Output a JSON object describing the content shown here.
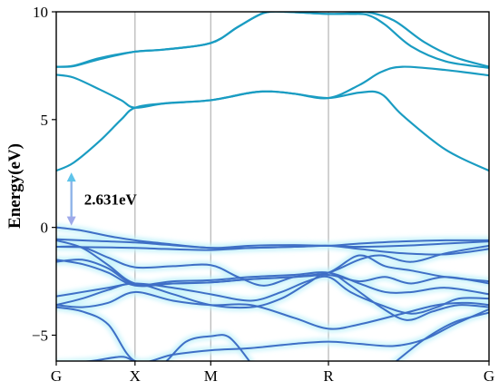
{
  "chart_data": {
    "type": "line",
    "title": "",
    "ylabel": "Energy(eV)",
    "xlabel": "",
    "ylim": [
      -6.2,
      10
    ],
    "x_range": [
      0,
      1
    ],
    "grid": false,
    "k_points": [
      {
        "label": "G",
        "x": 0.0
      },
      {
        "label": "X",
        "x": 0.182
      },
      {
        "label": "M",
        "x": 0.357
      },
      {
        "label": "R",
        "x": 0.629
      },
      {
        "label": "G",
        "x": 1.0
      }
    ],
    "y_ticks": [
      {
        "label": "10",
        "value": 10
      },
      {
        "label": "5",
        "value": 5
      },
      {
        "label": "0",
        "value": 0
      },
      {
        "label": "−5",
        "value": -5
      }
    ],
    "annotation": {
      "text": "2.631eV",
      "x": 0.035,
      "y_low": 0,
      "y_high": 2.631
    },
    "conduction_color": "#1a9cc2",
    "valence_color": "#3f6fc6",
    "glow_color": "#c8f3fb",
    "conduction_bands": [
      {
        "x": [
          0,
          0.04,
          0.1,
          0.15,
          0.182,
          0.25,
          0.357,
          0.45,
          0.5,
          0.55,
          0.629,
          0.7,
          0.75,
          0.8,
          0.9,
          1.0
        ],
        "y": [
          2.63,
          3.0,
          4.0,
          5.0,
          5.55,
          5.75,
          5.9,
          6.25,
          6.3,
          6.2,
          6.0,
          6.25,
          6.2,
          5.2,
          3.6,
          2.63
        ]
      },
      {
        "x": [
          0,
          0.04,
          0.1,
          0.15,
          0.182,
          0.25,
          0.357,
          0.45,
          0.5,
          0.55,
          0.629,
          0.7,
          0.75,
          0.8,
          0.9,
          1.0
        ],
        "y": [
          7.08,
          6.95,
          6.4,
          5.9,
          5.55,
          5.75,
          5.9,
          6.25,
          6.3,
          6.2,
          6.0,
          6.6,
          7.2,
          7.45,
          7.3,
          7.05
        ]
      },
      {
        "x": [
          0,
          0.04,
          0.1,
          0.182,
          0.25,
          0.357,
          0.42,
          0.48,
          0.53,
          0.56,
          0.629,
          0.68,
          0.72,
          0.78,
          0.85,
          0.92,
          1.0
        ],
        "y": [
          7.45,
          7.48,
          7.8,
          8.15,
          8.25,
          8.55,
          9.3,
          9.95,
          10.0,
          9.97,
          9.9,
          9.93,
          9.98,
          9.6,
          8.6,
          7.9,
          7.45
        ]
      },
      {
        "x": [
          0,
          0.04,
          0.1,
          0.182,
          0.25,
          0.357,
          0.42,
          0.48,
          0.53,
          0.56,
          0.629,
          0.68,
          0.72,
          0.76,
          0.82,
          0.9,
          1.0
        ],
        "y": [
          7.45,
          7.5,
          7.85,
          8.15,
          8.25,
          8.55,
          9.3,
          9.95,
          10.0,
          9.97,
          9.9,
          9.9,
          9.85,
          9.4,
          8.4,
          7.7,
          7.4
        ]
      }
    ],
    "valence_bands": [
      {
        "x": [
          0,
          0.06,
          0.12,
          0.182,
          0.25,
          0.357,
          0.45,
          0.55,
          0.629,
          0.7,
          0.8,
          0.9,
          1.0
        ],
        "y": [
          0.0,
          -0.15,
          -0.4,
          -0.6,
          -0.75,
          -0.95,
          -0.85,
          -0.82,
          -0.85,
          -0.75,
          -0.65,
          -0.6,
          -0.6
        ]
      },
      {
        "x": [
          0,
          0.08,
          0.182,
          0.25,
          0.357,
          0.45,
          0.55,
          0.629,
          0.7,
          0.8,
          0.9,
          1.0
        ],
        "y": [
          -0.55,
          -0.62,
          -0.7,
          -0.8,
          -0.95,
          -0.95,
          -0.9,
          -0.85,
          -0.9,
          -0.85,
          -0.75,
          -0.65
        ]
      },
      {
        "x": [
          0,
          0.08,
          0.182,
          0.25,
          0.357,
          0.45,
          0.55,
          0.629,
          0.7,
          0.8,
          0.9,
          1.0
        ],
        "y": [
          -0.9,
          -0.92,
          -0.95,
          -1.0,
          -1.05,
          -0.95,
          -0.9,
          -0.85,
          -1.0,
          -1.2,
          -1.25,
          -1.0
        ]
      },
      {
        "x": [
          0,
          0.06,
          0.12,
          0.182,
          0.27,
          0.357,
          0.42,
          0.48,
          0.55,
          0.629,
          0.7,
          0.75,
          0.82,
          0.9,
          1.0
        ],
        "y": [
          -0.9,
          -0.92,
          -1.4,
          -1.85,
          -1.8,
          -1.75,
          -2.3,
          -2.7,
          -2.3,
          -2.1,
          -1.5,
          -1.3,
          -1.6,
          -1.2,
          -0.85
        ]
      },
      {
        "x": [
          0,
          0.06,
          0.12,
          0.182,
          0.27,
          0.357,
          0.45,
          0.55,
          0.629,
          0.7,
          0.76,
          0.82,
          0.9,
          1.0
        ],
        "y": [
          -0.6,
          -0.95,
          -1.75,
          -2.6,
          -2.6,
          -2.55,
          -2.4,
          -2.3,
          -2.1,
          -1.3,
          -1.8,
          -2.0,
          -2.3,
          -2.5
        ]
      },
      {
        "x": [
          0,
          0.06,
          0.12,
          0.182,
          0.27,
          0.357,
          0.45,
          0.55,
          0.629,
          0.7,
          0.76,
          0.82,
          0.9,
          1.0
        ],
        "y": [
          -1.5,
          -1.7,
          -2.1,
          -2.7,
          -2.6,
          -2.55,
          -2.4,
          -2.3,
          -2.2,
          -2.5,
          -2.3,
          -2.6,
          -2.3,
          -2.6
        ]
      },
      {
        "x": [
          0,
          0.06,
          0.12,
          0.182,
          0.27,
          0.357,
          0.45,
          0.55,
          0.629,
          0.7,
          0.76,
          0.82,
          0.9,
          1.0
        ],
        "y": [
          -1.6,
          -1.5,
          -1.9,
          -2.65,
          -2.5,
          -2.45,
          -2.3,
          -2.2,
          -2.1,
          -2.6,
          -3.0,
          -3.0,
          -2.8,
          -3.1
        ]
      },
      {
        "x": [
          0,
          0.06,
          0.12,
          0.182,
          0.27,
          0.357,
          0.45,
          0.52,
          0.58,
          0.629,
          0.68,
          0.75,
          0.82,
          0.88,
          0.93,
          1.0
        ],
        "y": [
          -3.2,
          -3.0,
          -2.8,
          -2.6,
          -2.8,
          -3.1,
          -3.4,
          -3.0,
          -2.5,
          -2.3,
          -3.0,
          -3.6,
          -4.0,
          -3.7,
          -3.3,
          -3.3
        ]
      },
      {
        "x": [
          0,
          0.06,
          0.12,
          0.182,
          0.27,
          0.357,
          0.45,
          0.52,
          0.58,
          0.629,
          0.68,
          0.75,
          0.81,
          0.87,
          0.93,
          1.0
        ],
        "y": [
          -3.6,
          -3.3,
          -2.9,
          -2.6,
          -3.1,
          -3.6,
          -3.7,
          -3.3,
          -2.6,
          -2.1,
          -2.7,
          -3.7,
          -4.3,
          -3.9,
          -3.6,
          -3.7
        ]
      },
      {
        "x": [
          0,
          0.06,
          0.12,
          0.182,
          0.27,
          0.357,
          0.45,
          0.55,
          0.629,
          0.7,
          0.8,
          0.88,
          0.95,
          1.0
        ],
        "y": [
          -3.6,
          -3.7,
          -3.5,
          -3.0,
          -3.4,
          -3.6,
          -3.6,
          -4.2,
          -4.7,
          -4.5,
          -4.0,
          -3.6,
          -3.5,
          -3.6
        ]
      },
      {
        "x": [
          0,
          0.06,
          0.12,
          0.182,
          0.27,
          0.357,
          0.45,
          0.55,
          0.629,
          0.7,
          0.78,
          0.85,
          0.92,
          1.0
        ],
        "y": [
          -3.7,
          -3.9,
          -4.5,
          -6.2,
          -5.9,
          -5.7,
          -5.6,
          -5.4,
          -5.3,
          -5.4,
          -5.5,
          -5.2,
          -4.5,
          -3.8
        ]
      },
      {
        "x": [
          0,
          0.08,
          0.15,
          0.182,
          0.24,
          0.3,
          0.357,
          0.4,
          0.45
        ],
        "y": [
          -6.3,
          -6.2,
          -6.0,
          -6.2,
          -6.4,
          -5.3,
          -5.05,
          -5.1,
          -6.3
        ]
      },
      {
        "x": [
          0.78,
          0.85,
          0.92,
          1.0
        ],
        "y": [
          -6.3,
          -5.2,
          -4.4,
          -3.95
        ]
      }
    ]
  }
}
